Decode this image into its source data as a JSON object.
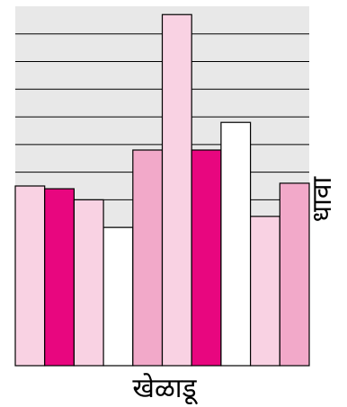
{
  "chart_data": {
    "type": "bar",
    "xlabel": "खेळाडू",
    "ylabel": "धावा",
    "title": "",
    "ylim": [
      0,
      13
    ],
    "grid": true,
    "colors": {
      "plot_background": "#e8e8e8",
      "grid_line": "#000000",
      "bar_outline": "#000000",
      "light_pink": "#f9d2e3",
      "medium_pink": "#f2a9c9",
      "magenta": "#e8067f",
      "white": "#ffffff"
    },
    "bars": [
      {
        "value": 6.5,
        "color": "#f9d2e3"
      },
      {
        "value": 6.4,
        "color": "#e8067f"
      },
      {
        "value": 6.0,
        "color": "#f9d2e3"
      },
      {
        "value": 5.0,
        "color": "#ffffff"
      },
      {
        "value": 7.8,
        "color": "#f2a9c9"
      },
      {
        "value": 12.7,
        "color": "#f9d2e3"
      },
      {
        "value": 7.8,
        "color": "#e8067f"
      },
      {
        "value": 8.8,
        "color": "#ffffff"
      },
      {
        "value": 5.4,
        "color": "#f9d2e3"
      },
      {
        "value": 6.6,
        "color": "#f2a9c9"
      }
    ]
  }
}
